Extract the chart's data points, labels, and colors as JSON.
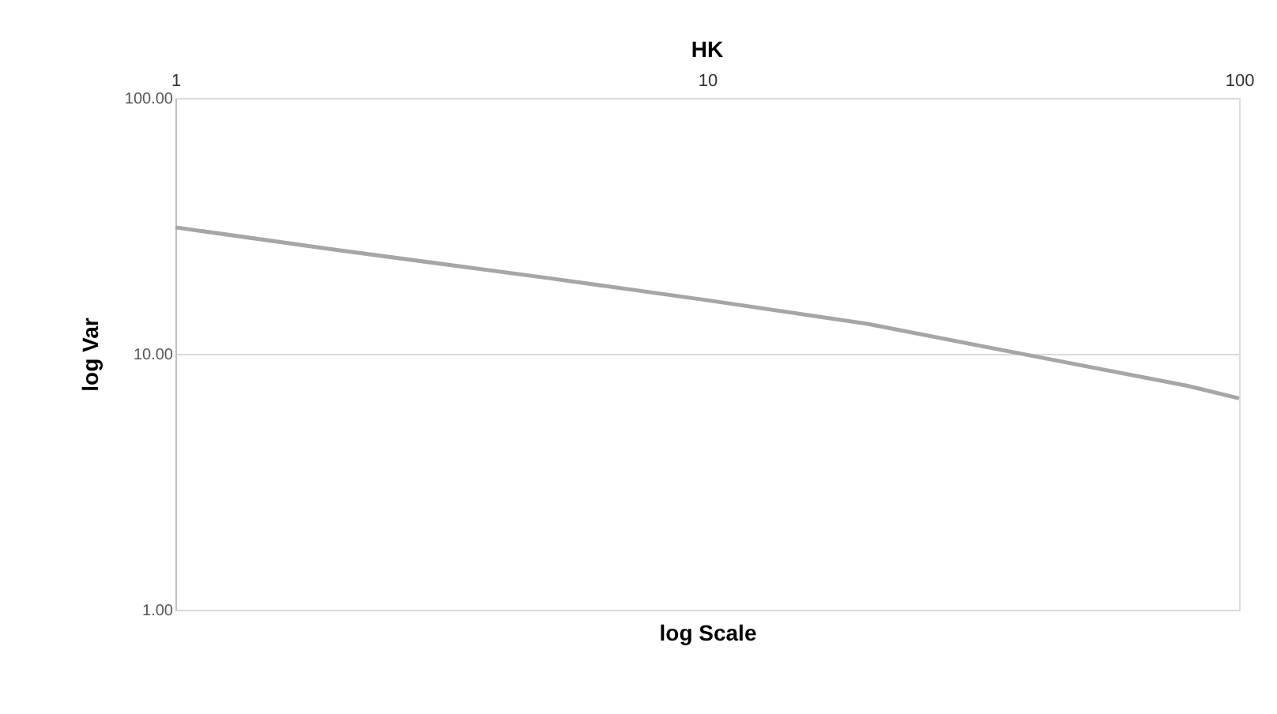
{
  "chart_data": {
    "type": "line",
    "title": "HK",
    "xlabel": "log Scale",
    "ylabel": "log Var",
    "log": "xy",
    "grid": "y",
    "marker": "none",
    "line_style": "solid",
    "xlim": [
      1,
      100
    ],
    "xticks": [
      1,
      10,
      100
    ],
    "ylim": [
      1,
      100
    ],
    "yticks": [
      {
        "value": 1,
        "label": "1.00"
      },
      {
        "value": 10,
        "label": "10.00"
      },
      {
        "value": 100,
        "label": "100.00"
      }
    ],
    "series": [
      {
        "color": "#a6a6a6",
        "x": [
          1,
          2,
          5,
          10,
          20,
          40,
          80,
          100
        ],
        "values": [
          31.2,
          25.5,
          19.8,
          16.2,
          13.1,
          9.9,
          7.5,
          6.7
        ]
      }
    ]
  }
}
